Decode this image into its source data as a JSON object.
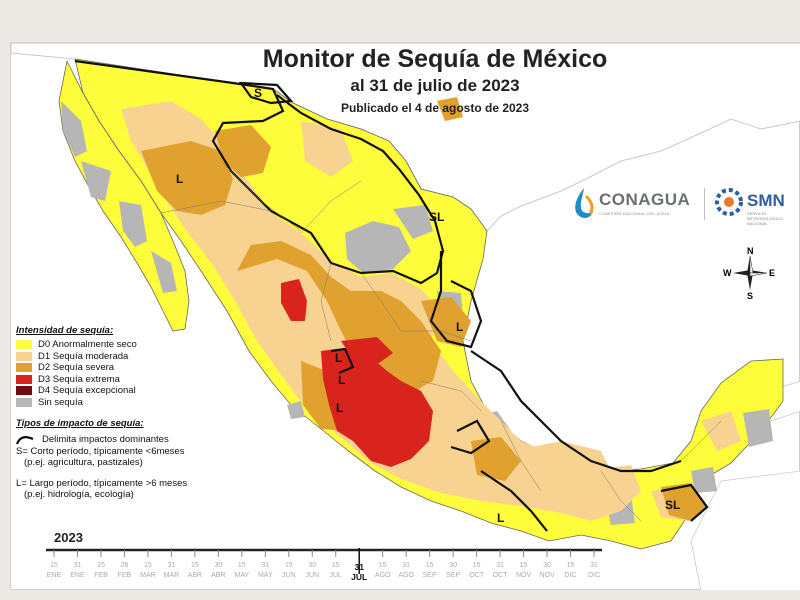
{
  "title": {
    "main": "Monitor de Sequía de México",
    "date": "al 31 de julio de 2023",
    "published": "Publicado el 4 de agosto de 2023"
  },
  "logos": {
    "conagua": {
      "name": "CONAGUA",
      "tagline": "COMISIÓN NACIONAL DEL AGUA"
    },
    "smn": {
      "name": "SMN",
      "tagline": "SERVICIO METEOROLÓGICO NACIONAL"
    }
  },
  "compass": {
    "n": "N",
    "s": "S",
    "e": "E",
    "w": "W"
  },
  "map_labels": {
    "s_north": "S",
    "l_sonora": "L",
    "sl_tamaulipas": "SL",
    "l_nuevo_leon": "L",
    "l_central": "L",
    "l_jalisco_n": "L",
    "l_jalisco": "L",
    "l_guerrero": "L",
    "sl_yucatan": "SL"
  },
  "legend": {
    "intensity_title": "Intensidad de sequía:",
    "categories": [
      {
        "label": "D0 Anormalmente seco",
        "color": "#fdfd3b"
      },
      {
        "label": "D1 Sequía moderada",
        "color": "#f7d291"
      },
      {
        "label": "D2 Sequía severa",
        "color": "#e0a12e"
      },
      {
        "label": "D3 Sequía extrema",
        "color": "#d9241d"
      },
      {
        "label": "D4 Sequía excepcional",
        "color": "#6d0d0b"
      },
      {
        "label": "Sin sequía",
        "color": "#b6b6b6"
      }
    ],
    "impact_title": "Tipos de impacto de sequía:",
    "impact_line": "Delimita impactos dominantes",
    "impact_s": "S= Corto período, típicamente <6meses",
    "impact_s_eg": "(p.ej. agricultura, pastizales)",
    "impact_l": "L= Largo período, típicamente >6 meses",
    "impact_l_eg": "(p.ej. hidrología, ecología)"
  },
  "timeline": {
    "year": "2023",
    "days": [
      "15",
      "31",
      "15",
      "28",
      "15",
      "31",
      "15",
      "30",
      "15",
      "31",
      "15",
      "30",
      "15",
      "31",
      "15",
      "31",
      "15",
      "30",
      "15",
      "31",
      "15",
      "30",
      "15",
      "31"
    ],
    "months": [
      "ENE",
      "ENE",
      "FEB",
      "FEB",
      "MAR",
      "MAR",
      "ABR",
      "ABR",
      "MAY",
      "MAY",
      "JUN",
      "JUN",
      "JUL",
      "JUL",
      "AGO",
      "AGO",
      "SEP",
      "SEP",
      "OCT",
      "OCT",
      "NOV",
      "NOV",
      "DIC",
      "DIC"
    ],
    "current_index": 13,
    "current_day": "31",
    "current_month": "JUL"
  }
}
